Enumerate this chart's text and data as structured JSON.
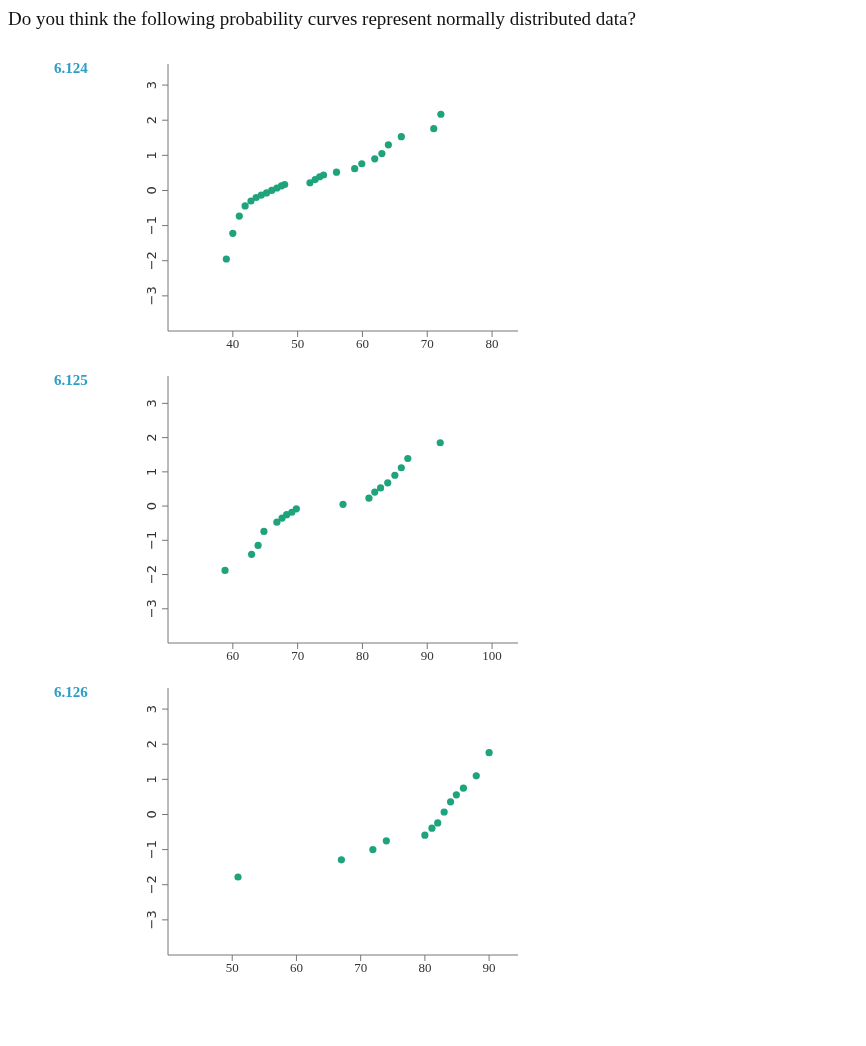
{
  "chart_data": [
    {
      "type": "scatter",
      "title": "6.124",
      "annotations": [
        "Do you think the following probability curves represent normally distributed data?"
      ],
      "color": "#1fa37c",
      "marker": "circle",
      "x": [
        39,
        40,
        41,
        41.9,
        42.8,
        43.6,
        44.4,
        45.2,
        46,
        46.8,
        47.5,
        48,
        51.9,
        52.7,
        53.4,
        54,
        56,
        58.8,
        59.9,
        61.9,
        63,
        64,
        66,
        71,
        72.1
      ],
      "values": [
        -1.95,
        -1.22,
        -0.73,
        -0.44,
        -0.3,
        -0.2,
        -0.13,
        -0.07,
        0,
        0.07,
        0.13,
        0.17,
        0.22,
        0.31,
        0.39,
        0.44,
        0.52,
        0.62,
        0.76,
        0.9,
        1.05,
        1.3,
        1.53,
        1.76,
        2.17
      ],
      "xlim": [
        30,
        84
      ],
      "xticks": [
        40,
        50,
        60,
        70,
        80
      ],
      "ylim": [
        -4,
        3.6
      ],
      "yticks": [
        -3,
        -2,
        -1,
        0,
        1,
        2,
        3
      ]
    },
    {
      "type": "scatter",
      "title": "6.125",
      "color": "#1fa37c",
      "marker": "circle",
      "x": [
        58.8,
        62.9,
        63.9,
        64.8,
        66.8,
        67.6,
        68.3,
        69.1,
        69.8,
        77,
        81,
        81.9,
        82.8,
        83.9,
        85,
        86,
        87,
        92
      ],
      "values": [
        -1.88,
        -1.41,
        -1.15,
        -0.74,
        -0.47,
        -0.35,
        -0.25,
        -0.18,
        -0.08,
        0.05,
        0.23,
        0.41,
        0.53,
        0.68,
        0.9,
        1.12,
        1.39,
        1.85
      ],
      "xlim": [
        50,
        104
      ],
      "xticks": [
        60,
        70,
        80,
        90,
        100
      ],
      "ylim": [
        -4,
        3.8
      ],
      "yticks": [
        -3,
        -2,
        -1,
        0,
        1,
        2,
        3
      ]
    },
    {
      "type": "scatter",
      "title": "6.126",
      "color": "#1fa37c",
      "marker": "circle",
      "x": [
        50.9,
        67,
        71.9,
        74,
        80,
        81.1,
        82,
        83,
        84,
        84.9,
        86,
        88,
        90
      ],
      "values": [
        -1.78,
        -1.29,
        -1,
        -0.75,
        -0.59,
        -0.39,
        -0.24,
        0.07,
        0.36,
        0.56,
        0.75,
        1.1,
        1.76
      ],
      "xlim": [
        40,
        94.5
      ],
      "xticks": [
        50,
        60,
        70,
        80,
        90
      ],
      "ylim": [
        -4,
        3.6
      ],
      "yticks": [
        -3,
        -2,
        -1,
        0,
        1,
        2,
        3
      ]
    }
  ]
}
